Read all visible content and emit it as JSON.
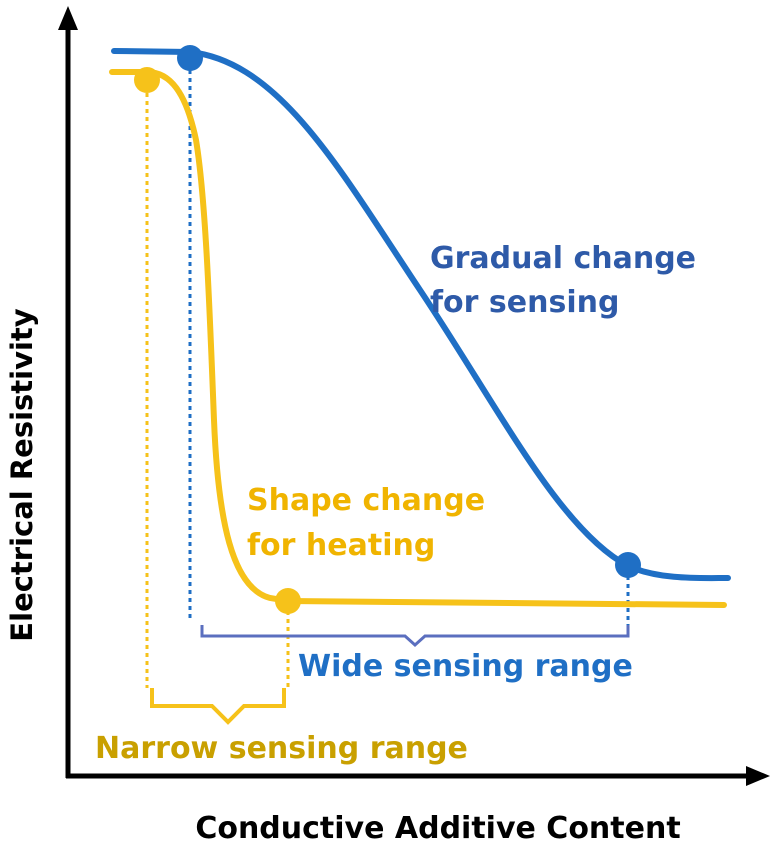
{
  "axes": {
    "x_label": "Conductive Additive Content",
    "y_label": "Electrical Resistivity"
  },
  "annotations": {
    "blue_curve_label_line1": "Gradual change",
    "blue_curve_label_line2": "for sensing",
    "yellow_curve_label_line1": "Shape change",
    "yellow_curve_label_line2": "for heating",
    "wide_range_label": "Wide sensing range",
    "narrow_range_label": "Narrow sensing range"
  },
  "colors": {
    "blue_curve": "#1f6fc5",
    "blue_text": "#2e5aa8",
    "blue_brace": "#5b6fbf",
    "yellow_curve": "#f6c21a",
    "yellow_text": "#f0b400",
    "narrow_text": "#c9a000",
    "axis": "#000000"
  }
}
